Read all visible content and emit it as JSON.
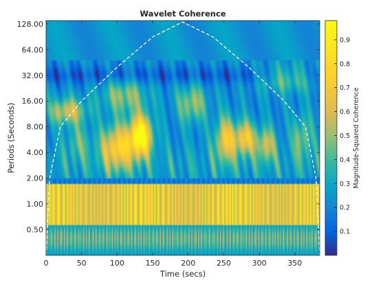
{
  "chart_data": {
    "type": "heatmap",
    "title": "Wavelet Coherence",
    "xlabel": "Time (secs)",
    "ylabel": "Periods (Seconds)",
    "xlim": [
      0,
      385
    ],
    "ylim": [
      0.25,
      140
    ],
    "y_scale": "log2",
    "x_ticks": [
      0,
      50,
      100,
      150,
      200,
      250,
      300,
      350
    ],
    "x_tick_labels": [
      "0",
      "50",
      "100",
      "150",
      "200",
      "250",
      "300",
      "350"
    ],
    "y_ticks": [
      0.5,
      1,
      2,
      4,
      8,
      16,
      32,
      64,
      128
    ],
    "y_tick_labels": [
      "0.50",
      "1.00",
      "2.00",
      "4.00",
      "8.00",
      "16.00",
      "32.00",
      "64.00",
      "128.00"
    ],
    "colorbar": {
      "label": "Magnitude-Squared Coherence",
      "range": [
        0,
        0.98
      ],
      "ticks": [
        0.1,
        0.2,
        0.3,
        0.4,
        0.5,
        0.6,
        0.7,
        0.8,
        0.9
      ],
      "tick_labels": [
        "0.1",
        "0.2",
        "0.3",
        "0.4",
        "0.5",
        "0.6",
        "0.7",
        "0.8",
        "0.9"
      ],
      "colormap": "parula"
    },
    "cone_of_influence": {
      "x": [
        0,
        5,
        20,
        50,
        100,
        150,
        192,
        235,
        285,
        335,
        365,
        380,
        385
      ],
      "period": [
        0.25,
        2,
        8,
        16,
        40,
        90,
        135,
        90,
        40,
        16,
        8,
        2,
        0.25
      ]
    },
    "notable_regions": [
      {
        "x": [
          120,
          145
        ],
        "period": [
          4,
          10
        ],
        "coherence": 0.95
      },
      {
        "x": [
          0,
          385
        ],
        "period": [
          0.6,
          1.6
        ],
        "coherence": 0.85
      }
    ]
  }
}
